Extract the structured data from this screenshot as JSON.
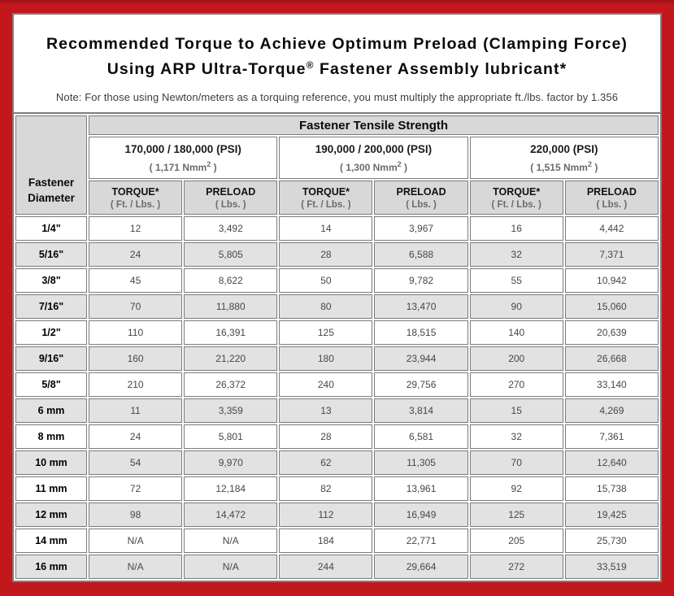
{
  "title": {
    "line1": "Recommended Torque to Achieve Optimum Preload (Clamping Force)",
    "line2_pre": "Using ARP Ultra-Torque",
    "line2_reg": "®",
    "line2_post": " Fastener Assembly lubricant*",
    "note": "Note: For those using Newton/meters as a torquing reference, you must multiply the appropriate ft./lbs. factor by 1.356"
  },
  "table": {
    "corner_line1": "Fastener",
    "corner_line2": "Diameter",
    "tensile_header": "Fastener Tensile Strength",
    "groups": [
      {
        "psi": "170,000 / 180,000 (PSI)",
        "nmm_pre": "( 1,171 Nmm",
        "nmm_sup": "2",
        "nmm_post": " )"
      },
      {
        "psi": "190,000 / 200,000 (PSI)",
        "nmm_pre": "( 1,300 Nmm",
        "nmm_sup": "2",
        "nmm_post": " )"
      },
      {
        "psi": "220,000 (PSI)",
        "nmm_pre": "( 1,515 Nmm",
        "nmm_sup": "2",
        "nmm_post": " )"
      }
    ],
    "sub_headers": {
      "torque_label": "TORQUE*",
      "torque_unit": "( Ft. / Lbs. )",
      "preload_label": "PRELOAD",
      "preload_unit": "( Lbs. )"
    },
    "rows": [
      {
        "diameter": "1/4\"",
        "values": [
          "12",
          "3,492",
          "14",
          "3,967",
          "16",
          "4,442"
        ]
      },
      {
        "diameter": "5/16\"",
        "values": [
          "24",
          "5,805",
          "28",
          "6,588",
          "32",
          "7,371"
        ]
      },
      {
        "diameter": "3/8\"",
        "values": [
          "45",
          "8,622",
          "50",
          "9,782",
          "55",
          "10,942"
        ]
      },
      {
        "diameter": "7/16\"",
        "values": [
          "70",
          "11,880",
          "80",
          "13,470",
          "90",
          "15,060"
        ]
      },
      {
        "diameter": "1/2\"",
        "values": [
          "110",
          "16,391",
          "125",
          "18,515",
          "140",
          "20,639"
        ]
      },
      {
        "diameter": "9/16\"",
        "values": [
          "160",
          "21,220",
          "180",
          "23,944",
          "200",
          "26,668"
        ]
      },
      {
        "diameter": "5/8\"",
        "values": [
          "210",
          "26,372",
          "240",
          "29,756",
          "270",
          "33,140"
        ]
      },
      {
        "diameter": "6 mm",
        "values": [
          "11",
          "3,359",
          "13",
          "3,814",
          "15",
          "4,269"
        ]
      },
      {
        "diameter": "8 mm",
        "values": [
          "24",
          "5,801",
          "28",
          "6,581",
          "32",
          "7,361"
        ]
      },
      {
        "diameter": "10 mm",
        "values": [
          "54",
          "9,970",
          "62",
          "11,305",
          "70",
          "12,640"
        ]
      },
      {
        "diameter": "11 mm",
        "values": [
          "72",
          "12,184",
          "82",
          "13,961",
          "92",
          "15,738"
        ]
      },
      {
        "diameter": "12 mm",
        "values": [
          "98",
          "14,472",
          "112",
          "16,949",
          "125",
          "19,425"
        ]
      },
      {
        "diameter": "14 mm",
        "values": [
          "N/A",
          "N/A",
          "184",
          "22,771",
          "205",
          "25,730"
        ]
      },
      {
        "diameter": "16 mm",
        "values": [
          "N/A",
          "N/A",
          "244",
          "29,664",
          "272",
          "33,519"
        ]
      }
    ]
  },
  "colors": {
    "frame_red": "#C3171E",
    "header_gray": "#D8D8D8",
    "row_alt_gray": "#E2E2E2",
    "border_gray": "#7B7B7B"
  }
}
